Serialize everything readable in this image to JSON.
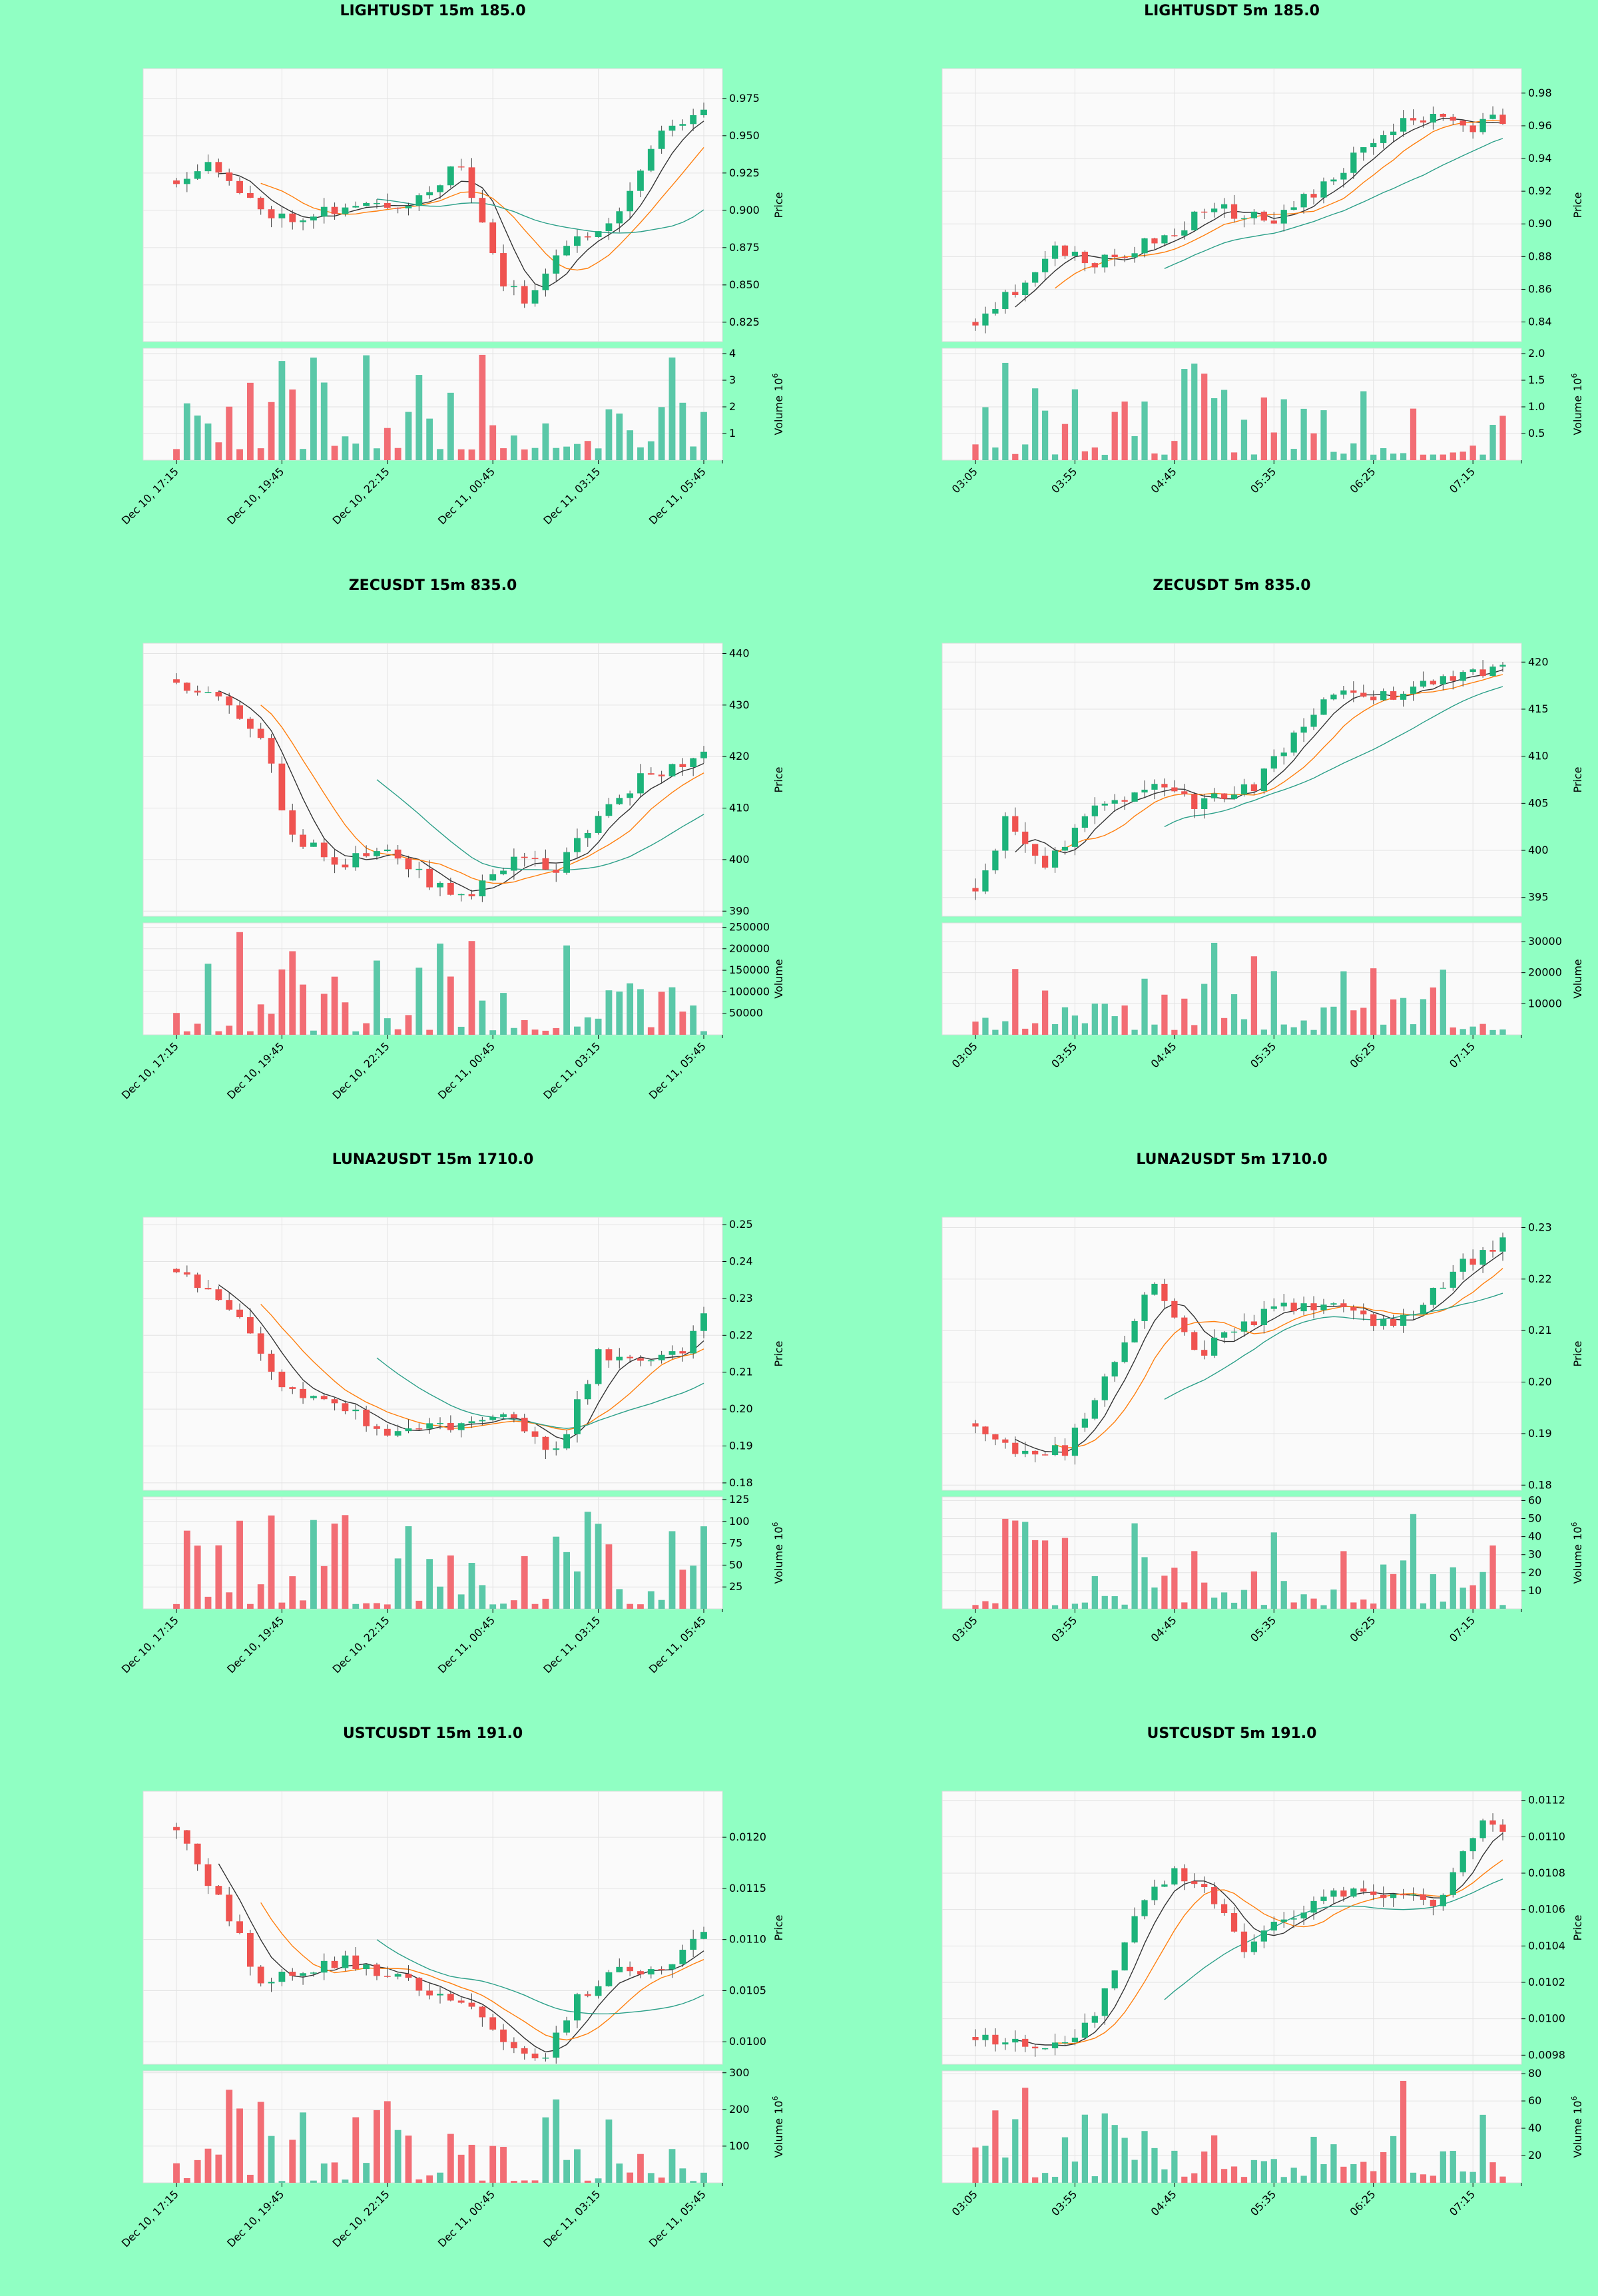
{
  "colors": {
    "background": "#90ffc3",
    "up": "#26a69a",
    "up_body": "#1db37a",
    "down": "#ef5350",
    "vol_up": "#5ac8a8",
    "vol_down": "#f26d74",
    "ma_short": "#333333",
    "ma_mid": "#ff7f0e",
    "ma_long": "#2ca089"
  },
  "labels": {
    "price": "Price",
    "volume": "Volume"
  },
  "x_ticks_15m": [
    "Dec 10, 17:15",
    "Dec 10, 19:45",
    "Dec 10, 22:15",
    "Dec 11, 00:45",
    "Dec 11, 03:15",
    "Dec 11, 05:45"
  ],
  "x_ticks_5m": [
    "03:05",
    "03:55",
    "04:45",
    "05:35",
    "06:25",
    "07:15"
  ],
  "chart_data": [
    {
      "type": "candlestick",
      "title": "LIGHTUSDT 15m 185.0",
      "timeframe": "15m",
      "seed": 11,
      "price_ticks": [
        "0.975",
        "0.950",
        "0.925",
        "0.900",
        "0.875",
        "0.850",
        "0.825"
      ],
      "ylim": [
        0.812,
        0.995
      ],
      "anchors": [
        [
          0,
          0.92
        ],
        [
          3,
          0.935
        ],
        [
          6,
          0.91
        ],
        [
          10,
          0.895
        ],
        [
          14,
          0.9
        ],
        [
          22,
          0.905
        ],
        [
          27,
          0.93
        ],
        [
          31,
          0.85
        ],
        [
          33,
          0.84
        ],
        [
          36,
          0.87
        ],
        [
          42,
          0.9
        ],
        [
          46,
          0.955
        ],
        [
          50,
          0.965
        ]
      ],
      "vol_ticks": [
        "4",
        "3",
        "2",
        "1"
      ],
      "vol_unit": "1e6",
      "vol_max": 4.2,
      "vol_range": [
        0.4,
        4.0
      ],
      "vol_scale": "1e6"
    },
    {
      "type": "candlestick",
      "title": "LIGHTUSDT 5m 185.0",
      "timeframe": "5m",
      "seed": 23,
      "price_ticks": [
        "0.98",
        "0.96",
        "0.94",
        "0.92",
        "0.90",
        "0.88",
        "0.86",
        "0.84"
      ],
      "ylim": [
        0.828,
        0.995
      ],
      "anchors": [
        [
          0,
          0.84
        ],
        [
          4,
          0.86
        ],
        [
          8,
          0.885
        ],
        [
          12,
          0.875
        ],
        [
          18,
          0.89
        ],
        [
          24,
          0.91
        ],
        [
          30,
          0.9
        ],
        [
          36,
          0.93
        ],
        [
          42,
          0.96
        ],
        [
          47,
          0.965
        ],
        [
          50,
          0.96
        ],
        [
          53,
          0.965
        ]
      ],
      "vol_ticks": [
        "2.0",
        "1.5",
        "1.0",
        "0.5"
      ],
      "vol_unit": "1e6",
      "vol_max": 2.1,
      "vol_range": [
        0.1,
        1.85
      ],
      "vol_scale": "1e6"
    },
    {
      "type": "candlestick",
      "title": "ZECUSDT 15m 835.0",
      "timeframe": "15m",
      "seed": 37,
      "price_ticks": [
        "440",
        "430",
        "420",
        "410",
        "400",
        "390"
      ],
      "ylim": [
        389,
        442
      ],
      "anchors": [
        [
          0,
          435
        ],
        [
          4,
          431
        ],
        [
          8,
          424
        ],
        [
          11,
          404
        ],
        [
          16,
          399
        ],
        [
          20,
          403
        ],
        [
          24,
          395
        ],
        [
          28,
          393
        ],
        [
          32,
          401
        ],
        [
          36,
          398
        ],
        [
          40,
          408
        ],
        [
          44,
          416
        ],
        [
          50,
          420
        ]
      ],
      "vol_ticks": [
        "250000",
        "200000",
        "150000",
        "100000",
        "50000"
      ],
      "vol_unit": "",
      "vol_max": 260000,
      "vol_range": [
        8000,
        240000
      ],
      "vol_scale": ""
    },
    {
      "type": "candlestick",
      "title": "ZECUSDT 5m 835.0",
      "timeframe": "5m",
      "seed": 41,
      "price_ticks": [
        "420",
        "415",
        "410",
        "405",
        "400",
        "395"
      ],
      "ylim": [
        393,
        422
      ],
      "anchors": [
        [
          0,
          396
        ],
        [
          3,
          403
        ],
        [
          7,
          398
        ],
        [
          11,
          404
        ],
        [
          18,
          407
        ],
        [
          22,
          405
        ],
        [
          28,
          407
        ],
        [
          32,
          412
        ],
        [
          36,
          417
        ],
        [
          40,
          416
        ],
        [
          46,
          418
        ],
        [
          53,
          419
        ]
      ],
      "vol_ticks": [
        "30000",
        "20000",
        "10000"
      ],
      "vol_unit": "",
      "vol_max": 36000,
      "vol_range": [
        1500,
        32000
      ],
      "vol_scale": ""
    },
    {
      "type": "candlestick",
      "title": "LUNA2USDT 15m 1710.0",
      "timeframe": "15m",
      "seed": 53,
      "price_ticks": [
        "0.25",
        "0.24",
        "0.23",
        "0.22",
        "0.21",
        "0.20",
        "0.19",
        "0.18"
      ],
      "ylim": [
        0.178,
        0.252
      ],
      "anchors": [
        [
          0,
          0.238
        ],
        [
          6,
          0.226
        ],
        [
          10,
          0.206
        ],
        [
          15,
          0.203
        ],
        [
          20,
          0.193
        ],
        [
          26,
          0.195
        ],
        [
          32,
          0.198
        ],
        [
          36,
          0.188
        ],
        [
          40,
          0.215
        ],
        [
          44,
          0.212
        ],
        [
          48,
          0.215
        ],
        [
          50,
          0.227
        ]
      ],
      "vol_ticks": [
        "125",
        "100",
        "75",
        "50",
        "25"
      ],
      "vol_unit": "1e6",
      "vol_max": 128,
      "vol_range": [
        5,
        112
      ],
      "vol_scale": "1e6"
    },
    {
      "type": "candlestick",
      "title": "LUNA2USDT 5m 1710.0",
      "timeframe": "5m",
      "seed": 67,
      "price_ticks": [
        "0.23",
        "0.22",
        "0.21",
        "0.20",
        "0.19",
        "0.18"
      ],
      "ylim": [
        0.179,
        0.232
      ],
      "anchors": [
        [
          0,
          0.192
        ],
        [
          5,
          0.186
        ],
        [
          9,
          0.187
        ],
        [
          14,
          0.205
        ],
        [
          18,
          0.22
        ],
        [
          22,
          0.205
        ],
        [
          26,
          0.21
        ],
        [
          30,
          0.214
        ],
        [
          34,
          0.215
        ],
        [
          40,
          0.212
        ],
        [
          44,
          0.212
        ],
        [
          48,
          0.222
        ],
        [
          53,
          0.227
        ]
      ],
      "vol_ticks": [
        "60",
        "50",
        "40",
        "30",
        "20",
        "10"
      ],
      "vol_unit": "1e6",
      "vol_max": 62,
      "vol_range": [
        2,
        55
      ],
      "vol_scale": "1e6"
    },
    {
      "type": "candlestick",
      "title": "USTCUSDT 15m 191.0",
      "timeframe": "15m",
      "seed": 79,
      "price_ticks": [
        "0.0120",
        "0.0115",
        "0.0110",
        "0.0105",
        "0.0100"
      ],
      "ylim": [
        0.00978,
        0.01245
      ],
      "anchors": [
        [
          0,
          0.0121
        ],
        [
          4,
          0.0114
        ],
        [
          8,
          0.0106
        ],
        [
          12,
          0.0107
        ],
        [
          16,
          0.0108
        ],
        [
          22,
          0.0106
        ],
        [
          28,
          0.0103
        ],
        [
          32,
          0.0099
        ],
        [
          35,
          0.0099
        ],
        [
          38,
          0.0104
        ],
        [
          42,
          0.0107
        ],
        [
          46,
          0.0107
        ],
        [
          50,
          0.0111
        ]
      ],
      "vol_ticks": [
        "300",
        "200",
        "100"
      ],
      "vol_unit": "1e6",
      "vol_max": 305,
      "vol_range": [
        5,
        270
      ],
      "vol_scale": "1e6"
    },
    {
      "type": "candlestick",
      "title": "USTCUSDT 5m 191.0",
      "timeframe": "5m",
      "seed": 83,
      "price_ticks": [
        "0.0112",
        "0.0110",
        "0.0108",
        "0.0106",
        "0.0104",
        "0.0102",
        "0.0100",
        "0.0098"
      ],
      "ylim": [
        0.00975,
        0.01125
      ],
      "anchors": [
        [
          0,
          0.0099
        ],
        [
          8,
          0.00985
        ],
        [
          12,
          0.01
        ],
        [
          16,
          0.0106
        ],
        [
          20,
          0.0108
        ],
        [
          23,
          0.0107
        ],
        [
          27,
          0.0104
        ],
        [
          30,
          0.0105
        ],
        [
          36,
          0.0107
        ],
        [
          42,
          0.0107
        ],
        [
          46,
          0.0106
        ],
        [
          49,
          0.0109
        ],
        [
          51,
          0.0111
        ],
        [
          53,
          0.011
        ]
      ],
      "vol_ticks": [
        "80",
        "60",
        "40",
        "20"
      ],
      "vol_unit": "1e6",
      "vol_max": 82,
      "vol_range": [
        4,
        75
      ],
      "vol_scale": "1e6"
    }
  ]
}
